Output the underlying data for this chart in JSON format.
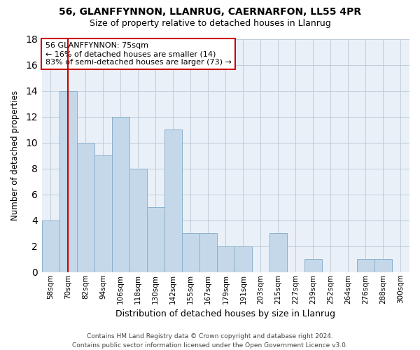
{
  "title1": "56, GLANFFYNNON, LLANRUG, CAERNARFON, LL55 4PR",
  "title2": "Size of property relative to detached houses in Llanrug",
  "xlabel": "Distribution of detached houses by size in Llanrug",
  "ylabel": "Number of detached properties",
  "categories": [
    "58sqm",
    "70sqm",
    "82sqm",
    "94sqm",
    "106sqm",
    "118sqm",
    "130sqm",
    "142sqm",
    "155sqm",
    "167sqm",
    "179sqm",
    "191sqm",
    "203sqm",
    "215sqm",
    "227sqm",
    "239sqm",
    "252sqm",
    "264sqm",
    "276sqm",
    "288sqm",
    "300sqm"
  ],
  "values": [
    4,
    14,
    10,
    9,
    12,
    8,
    5,
    11,
    3,
    3,
    2,
    2,
    0,
    3,
    0,
    1,
    0,
    0,
    1,
    1,
    0
  ],
  "bar_color": "#c5d8ea",
  "bar_edge_color": "#8ab0cc",
  "ylim": [
    0,
    18
  ],
  "yticks": [
    0,
    2,
    4,
    6,
    8,
    10,
    12,
    14,
    16,
    18
  ],
  "vline_x": 1,
  "vline_color": "#cc0000",
  "annotation_line1": "56 GLANFFYNNON: 75sqm",
  "annotation_line2": "← 16% of detached houses are smaller (14)",
  "annotation_line3": "83% of semi-detached houses are larger (73) →",
  "annotation_box_color": "#ffffff",
  "annotation_box_edge": "#cc0000",
  "footer": "Contains HM Land Registry data © Crown copyright and database right 2024.\nContains public sector information licensed under the Open Government Licence v3.0.",
  "bg_color": "#ffffff",
  "plot_bg_color": "#eaf0f8"
}
